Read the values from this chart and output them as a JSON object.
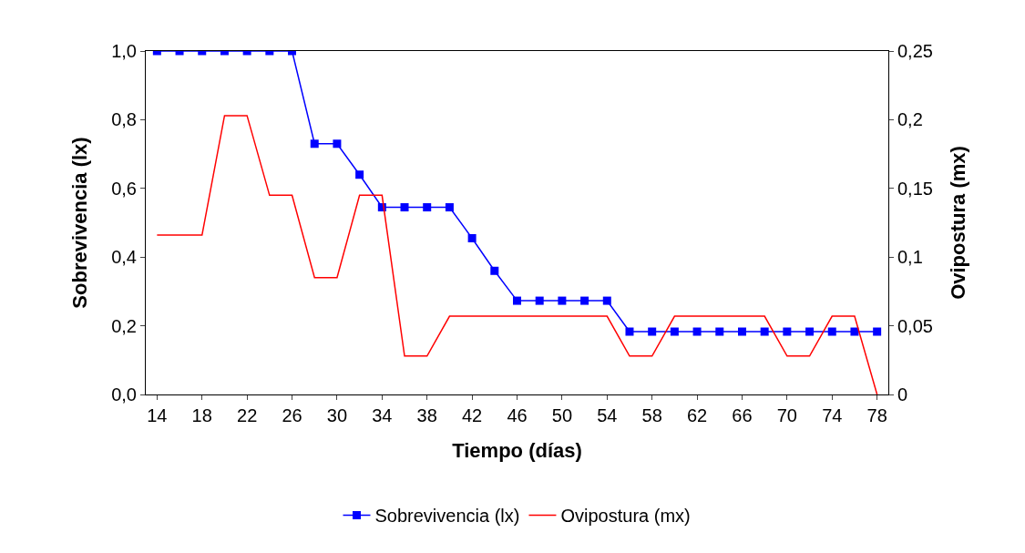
{
  "chart_data": {
    "type": "line",
    "xlabel": "Tiempo (días)",
    "ylabel": "Sobrevivencia (lx)",
    "y2label": "Ovipostura (mx)",
    "x": [
      14,
      16,
      18,
      20,
      22,
      24,
      26,
      28,
      30,
      32,
      34,
      36,
      38,
      40,
      42,
      44,
      46,
      48,
      50,
      52,
      54,
      56,
      58,
      60,
      62,
      64,
      66,
      68,
      70,
      72,
      74,
      76,
      78
    ],
    "series": [
      {
        "name": "Sobrevivencia (lx)",
        "color": "#0000ff",
        "marker": "square",
        "values": [
          1.0,
          1.0,
          1.0,
          1.0,
          1.0,
          1.0,
          1.0,
          0.73,
          0.73,
          0.64,
          0.545,
          0.545,
          0.545,
          0.545,
          0.455,
          0.36,
          0.273,
          0.273,
          0.273,
          0.273,
          0.273,
          0.183,
          0.183,
          0.183,
          0.183,
          0.183,
          0.183,
          0.183,
          0.183,
          0.183,
          0.183,
          0.183,
          0.183
        ]
      },
      {
        "name": "Ovipostura (mx)",
        "color": "#ff0000",
        "marker": "none",
        "axis": "y2",
        "values": [
          0.116,
          0.116,
          0.116,
          0.203,
          0.203,
          0.145,
          0.145,
          0.085,
          0.085,
          0.145,
          0.145,
          0.028,
          0.028,
          0.057,
          0.057,
          0.057,
          0.057,
          0.057,
          0.057,
          0.057,
          0.057,
          0.028,
          0.028,
          0.057,
          0.057,
          0.057,
          0.057,
          0.057,
          0.028,
          0.028,
          0.057,
          0.057,
          0
        ]
      }
    ],
    "xlim": [
      13,
      79
    ],
    "xticks": [
      14,
      18,
      22,
      26,
      30,
      34,
      38,
      42,
      46,
      50,
      54,
      58,
      62,
      66,
      70,
      74,
      78
    ],
    "ylim": [
      0,
      1.0
    ],
    "yticks": [
      {
        "value": 0,
        "label": "0,0"
      },
      {
        "value": 0.2,
        "label": "0,2"
      },
      {
        "value": 0.4,
        "label": "0,4"
      },
      {
        "value": 0.6,
        "label": "0,6"
      },
      {
        "value": 0.8,
        "label": "0,8"
      },
      {
        "value": 1.0,
        "label": "1,0"
      }
    ],
    "y2lim": [
      0,
      0.25
    ],
    "y2ticks": [
      0,
      {
        "value": 0.05,
        "label": "0,05"
      },
      {
        "value": 0.1,
        "label": "0,1"
      },
      {
        "value": 0.15,
        "label": "0,15"
      },
      {
        "value": 0.2,
        "label": "0,2"
      },
      {
        "value": 0.25,
        "label": "0,25"
      }
    ],
    "grid": false,
    "legend": "bottom",
    "line_style": "solid"
  }
}
